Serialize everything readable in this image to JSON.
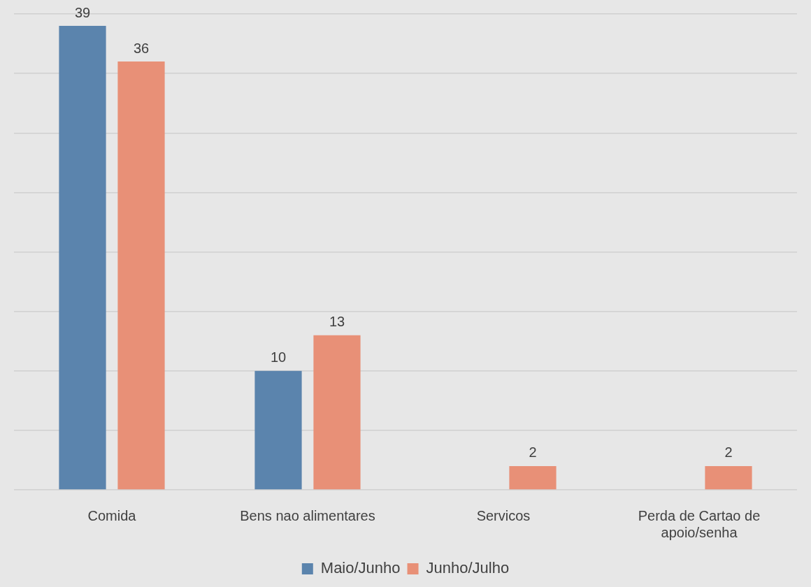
{
  "chart_data": {
    "type": "bar",
    "categories": [
      "Comida",
      "Bens nao alimentares",
      "Servicos",
      "Perda de Cartao de apoio/senha"
    ],
    "series": [
      {
        "name": "Maio/Junho",
        "color": "#5b84ad",
        "values": [
          39,
          10,
          null,
          null
        ]
      },
      {
        "name": "Junho/Julho",
        "color": "#e89077",
        "values": [
          36,
          13,
          2,
          2
        ]
      }
    ],
    "ylim": [
      0,
      40
    ],
    "yticks": [
      0,
      5,
      10,
      15,
      20,
      25,
      30,
      35,
      40
    ],
    "grid": "y",
    "tick_labels": "x",
    "data_labels": true,
    "legend": "bottom"
  }
}
